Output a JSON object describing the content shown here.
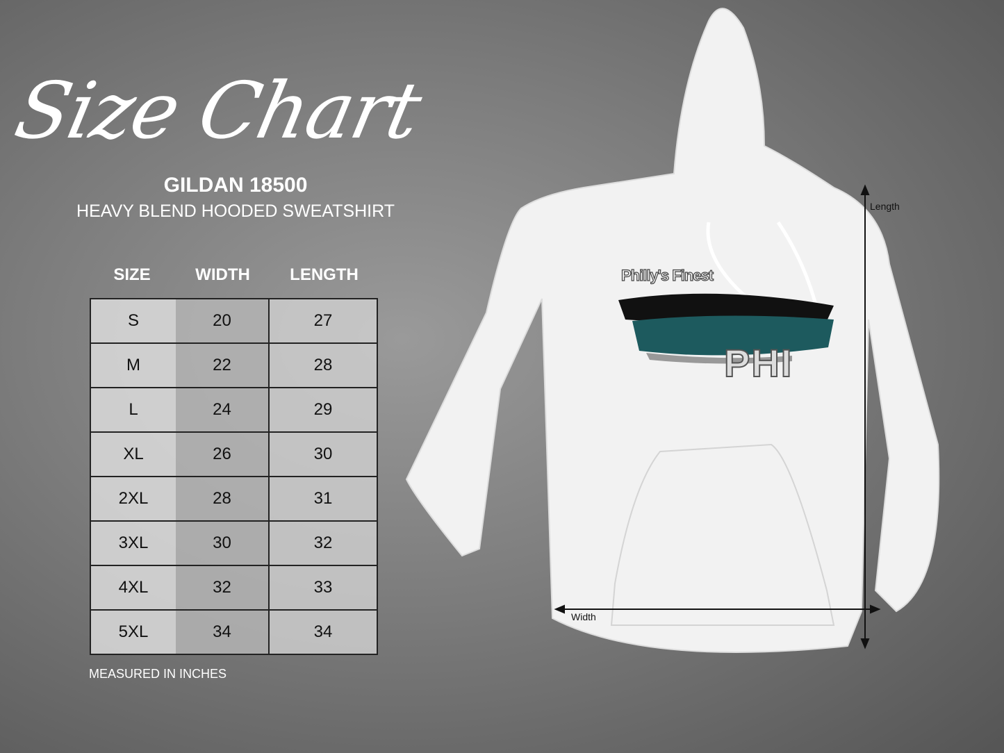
{
  "title": "Size Chart",
  "brand": {
    "model": "GILDAN 18500",
    "product": "HEAVY BLEND HOODED SWEATSHIRT"
  },
  "table": {
    "headers": [
      "SIZE",
      "WIDTH",
      "LENGTH"
    ],
    "rows": [
      [
        "S",
        "20",
        "27"
      ],
      [
        "M",
        "22",
        "28"
      ],
      [
        "L",
        "24",
        "29"
      ],
      [
        "XL",
        "26",
        "30"
      ],
      [
        "2XL",
        "28",
        "31"
      ],
      [
        "3XL",
        "30",
        "32"
      ],
      [
        "4XL",
        "32",
        "33"
      ],
      [
        "5XL",
        "34",
        "34"
      ]
    ]
  },
  "note": "MEASURED IN INCHES",
  "hoodie": {
    "print_text": "Philly's Finest",
    "print_logo": "PHI",
    "width_label": "Width",
    "length_label": "Length",
    "colors": {
      "teal": "#1d5a5e",
      "black": "#111111"
    }
  }
}
